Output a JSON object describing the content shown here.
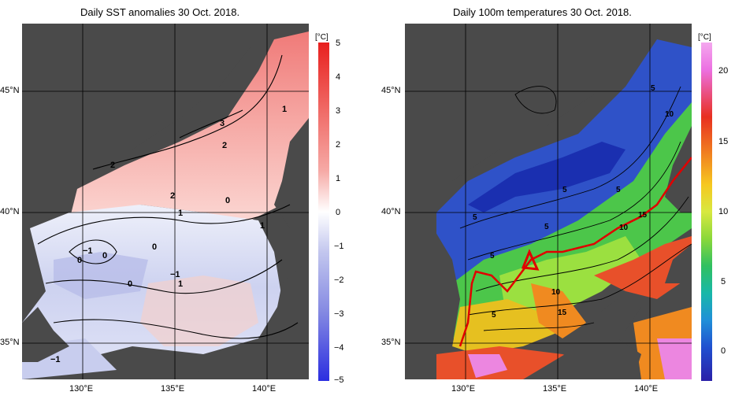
{
  "left_panel": {
    "title": "Daily SST anomalies 30 Oct. 2018.",
    "unit": "[°C]",
    "colorbar_ticks": [
      "5",
      "4",
      "3",
      "2",
      "1",
      "0",
      "−1",
      "−2",
      "−3",
      "−4",
      "−5"
    ],
    "contour_labels": [
      "3",
      "2",
      "2",
      "2",
      "1",
      "1",
      "0",
      "1",
      "−1",
      "0",
      "0",
      "0",
      "−1",
      "0",
      "−1",
      "1"
    ]
  },
  "right_panel": {
    "title": "Daily 100m temperatures 30 Oct. 2018.",
    "unit": "[°C]",
    "colorbar_ticks": [
      "20",
      "15",
      "10",
      "5",
      "0"
    ],
    "contour_labels": [
      "5",
      "10",
      "5",
      "5",
      "5",
      "5",
      "15",
      "10",
      "5",
      "10",
      "15",
      "5"
    ]
  },
  "axes": {
    "lat_labels": [
      "45°N",
      "40°N",
      "35°N"
    ],
    "lon_labels": [
      "130°E",
      "135°E",
      "140°E"
    ]
  },
  "colors": {
    "land": "#4a4a4a",
    "anomaly_warm": "#e8393b",
    "anomaly_cold": "#3a3ae8",
    "front_line": "#e00000"
  }
}
